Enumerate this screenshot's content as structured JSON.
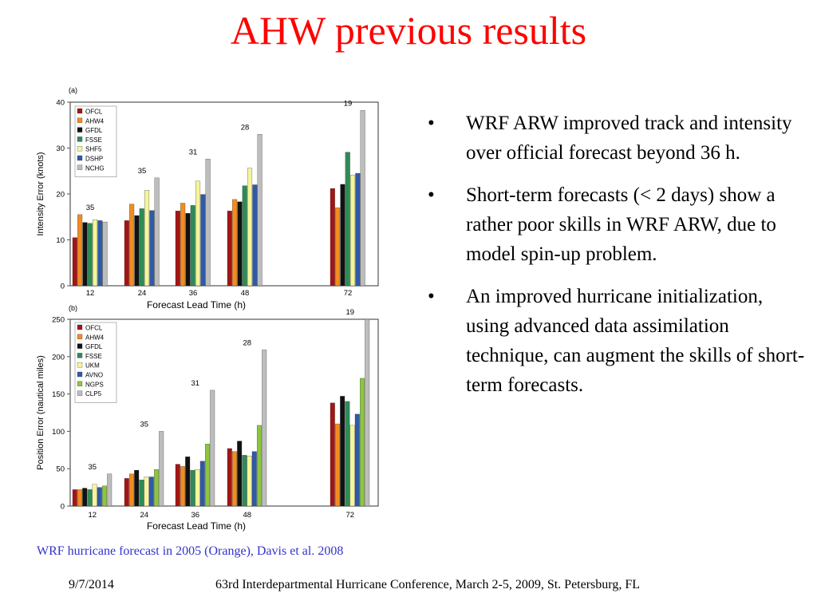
{
  "slide": {
    "title": "AHW previous results",
    "caption": "WRF hurricane forecast in 2005 (Orange), Davis et al. 2008",
    "footer_date": "9/7/2014",
    "footer_text": "63rd Interdepartmental Hurricane Conference, March 2-5, 2009, St. Petersburg, FL",
    "bullet_glyph": "•",
    "bullets": [
      "WRF ARW improved track and intensity over official forecast beyond 36 h.",
      "Short-term forecasts (< 2 days) show a rather poor skills in WRF ARW, due to model spin-up problem.",
      "An improved hurricane initialization, using advanced data assimilation technique, can augment the skills of short-term forecasts."
    ]
  },
  "chart_data": [
    {
      "type": "bar",
      "panel_label": "(a)",
      "xlabel": "Forecast Lead Time (h)",
      "ylabel": "Intensity Error (knots)",
      "ylim": [
        0,
        40
      ],
      "yticks": [
        0,
        10,
        20,
        30,
        40
      ],
      "categories": [
        "12",
        "24",
        "36",
        "48",
        "72"
      ],
      "counts": [
        "35",
        "35",
        "31",
        "28",
        "19"
      ],
      "legend_position": "top-left",
      "series": [
        {
          "name": "OFCL",
          "color": "#a31515",
          "values": [
            10.5,
            14.2,
            16.3,
            16.3,
            21.2
          ]
        },
        {
          "name": "AHW4",
          "color": "#f28c1e",
          "values": [
            15.5,
            17.8,
            18.0,
            18.8,
            17.0
          ]
        },
        {
          "name": "GFDL",
          "color": "#111111",
          "values": [
            13.8,
            15.3,
            15.8,
            18.3,
            22.1
          ]
        },
        {
          "name": "FSSE",
          "color": "#2e8b57",
          "values": [
            13.6,
            16.8,
            17.5,
            21.8,
            29.1
          ]
        },
        {
          "name": "SHF5",
          "color": "#f5f59a",
          "values": [
            14.4,
            20.8,
            22.8,
            25.6,
            24.1
          ]
        },
        {
          "name": "DSHP",
          "color": "#2f5aa8",
          "values": [
            14.2,
            16.4,
            19.9,
            22.0,
            24.5
          ]
        },
        {
          "name": "NCHG",
          "color": "#bdbdbd",
          "values": [
            13.9,
            23.5,
            27.6,
            33.0,
            38.2
          ]
        }
      ]
    },
    {
      "type": "bar",
      "panel_label": "(b)",
      "xlabel": "Forecast Lead Time (h)",
      "ylabel": "Position Error (nautical miles)",
      "ylim": [
        0,
        250
      ],
      "yticks": [
        0,
        50,
        100,
        150,
        200,
        250
      ],
      "categories": [
        "12",
        "24",
        "36",
        "48",
        "72"
      ],
      "counts": [
        "35",
        "35",
        "31",
        "28",
        "19"
      ],
      "legend_position": "top-left",
      "series": [
        {
          "name": "OFCL",
          "color": "#a31515",
          "values": [
            22,
            37,
            56,
            77,
            138
          ]
        },
        {
          "name": "AHW4",
          "color": "#f28c1e",
          "values": [
            22,
            43,
            53,
            73,
            110
          ]
        },
        {
          "name": "GFDL",
          "color": "#111111",
          "values": [
            24,
            48,
            66,
            87,
            147
          ]
        },
        {
          "name": "FSSE",
          "color": "#2e8b57",
          "values": [
            22,
            35,
            48,
            68,
            140
          ]
        },
        {
          "name": "UKM",
          "color": "#f5f59a",
          "values": [
            29,
            39,
            49,
            67,
            108
          ]
        },
        {
          "name": "AVNO",
          "color": "#2f5aa8",
          "values": [
            25,
            39,
            60,
            73,
            123
          ]
        },
        {
          "name": "NGPS",
          "color": "#8cc63f",
          "values": [
            27,
            49,
            83,
            108,
            171
          ]
        },
        {
          "name": "CLP5",
          "color": "#bdbdbd",
          "values": [
            43,
            100,
            155,
            209,
            250
          ]
        }
      ]
    }
  ]
}
